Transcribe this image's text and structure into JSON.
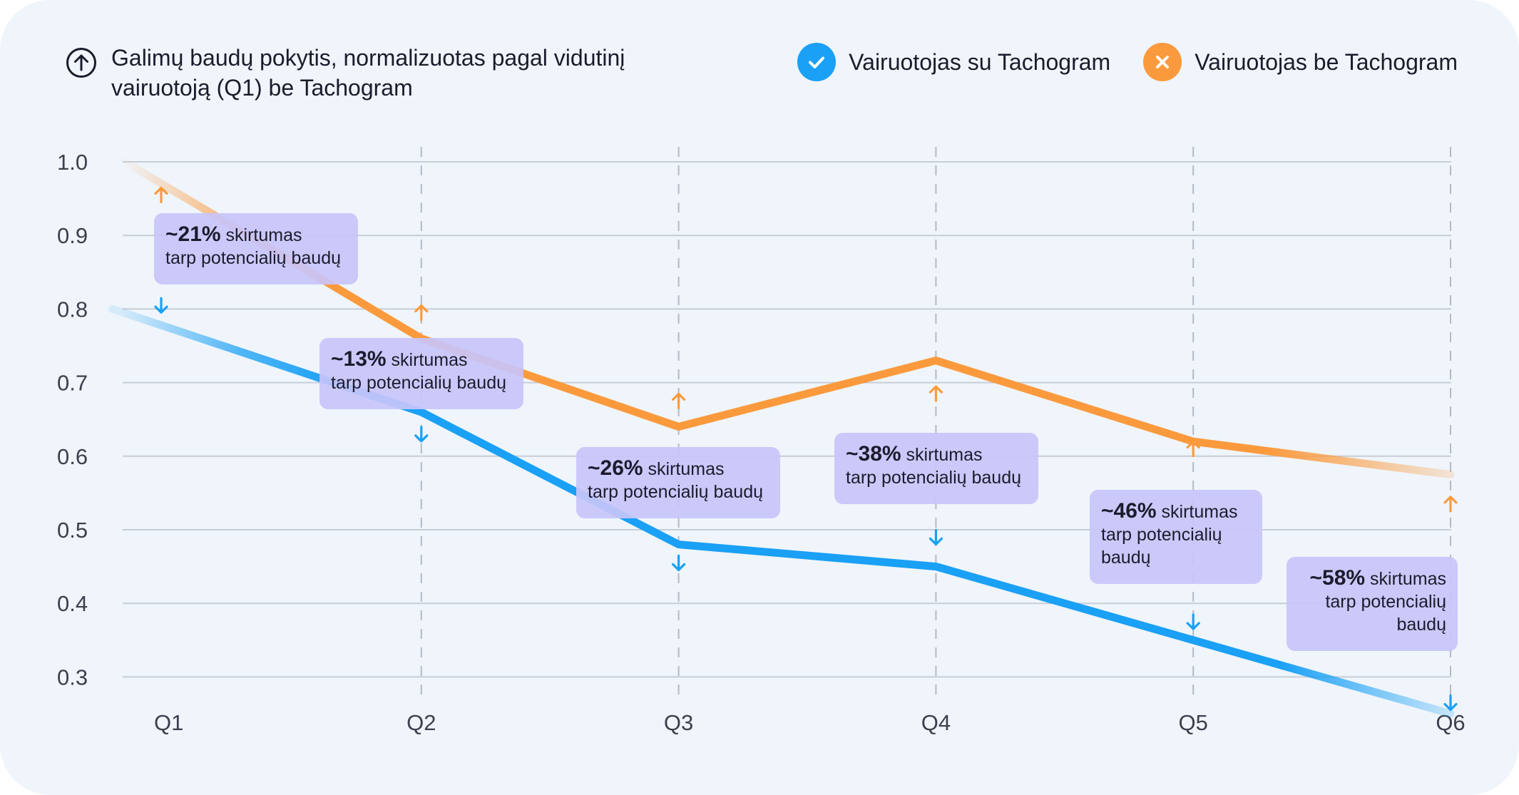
{
  "header": {
    "title": "Galimų baudų pokytis, normalizuotas pagal vidutinį vairuotoją (Q1) be Tachogram",
    "title_icon": "arrow-up-circle-icon"
  },
  "legend": [
    {
      "name": "Vairuotojas su Tachogram",
      "icon": "check-icon",
      "color": "#1aa0f5"
    },
    {
      "name": "Vairuotojas be Tachogram",
      "icon": "close-icon",
      "color": "#fb9a3d"
    }
  ],
  "chart_data": {
    "type": "line",
    "categories": [
      "Q1",
      "Q2",
      "Q3",
      "Q4",
      "Q5",
      "Q6"
    ],
    "y_ticks": [
      "1.0",
      "0.9",
      "0.8",
      "0.7",
      "0.6",
      "0.5",
      "0.4",
      "0.3"
    ],
    "ylim": [
      0.3,
      1.0
    ],
    "grid": true,
    "legend_position": "top-right",
    "series": [
      {
        "name": "Vairuotojas be Tachogram",
        "color": "#fb9a3d",
        "x": [
          0.8,
          2,
          3,
          4,
          5,
          6
        ],
        "values": [
          1.01,
          0.76,
          0.64,
          0.73,
          0.62,
          0.575
        ]
      },
      {
        "name": "Vairuotojas su Tachogram",
        "color": "#1aa0f5",
        "x": [
          0.8,
          2,
          3,
          4,
          5,
          6
        ],
        "values": [
          0.8,
          0.66,
          0.48,
          0.45,
          0.35,
          0.25
        ]
      }
    ],
    "annotations": [
      {
        "category": "Q1",
        "percent": "~21%",
        "word": "skirtumas",
        "lines": [
          "tarp potencialių baudų"
        ],
        "align": "left"
      },
      {
        "category": "Q2",
        "percent": "~13%",
        "word": "skirtumas",
        "lines": [
          "tarp potencialių baudų"
        ],
        "align": "left"
      },
      {
        "category": "Q3",
        "percent": "~26%",
        "word": "skirtumas",
        "lines": [
          "tarp potencialių baudų"
        ],
        "align": "left"
      },
      {
        "category": "Q4",
        "percent": "~38%",
        "word": "skirtumas",
        "lines": [
          "tarp potencialių baudų"
        ],
        "align": "left"
      },
      {
        "category": "Q5",
        "percent": "~46%",
        "word": "skirtumas",
        "lines": [
          "tarp potencialių",
          "baudų"
        ],
        "align": "left"
      },
      {
        "category": "Q6",
        "percent": "~58%",
        "word": "skirtumas",
        "lines": [
          "tarp potencialių",
          "baudų"
        ],
        "align": "right"
      }
    ],
    "gap_markers": [
      {
        "category": "Q1",
        "upper": 0.955,
        "lower": 0.805
      },
      {
        "category": "Q2",
        "upper": 0.795,
        "lower": 0.63
      },
      {
        "category": "Q3",
        "upper": 0.675,
        "lower": 0.455
      },
      {
        "category": "Q4",
        "upper": 0.685,
        "lower": 0.49
      },
      {
        "category": "Q5",
        "upper": 0.61,
        "lower": 0.375
      },
      {
        "category": "Q6",
        "upper": 0.535,
        "lower": 0.265
      }
    ]
  }
}
